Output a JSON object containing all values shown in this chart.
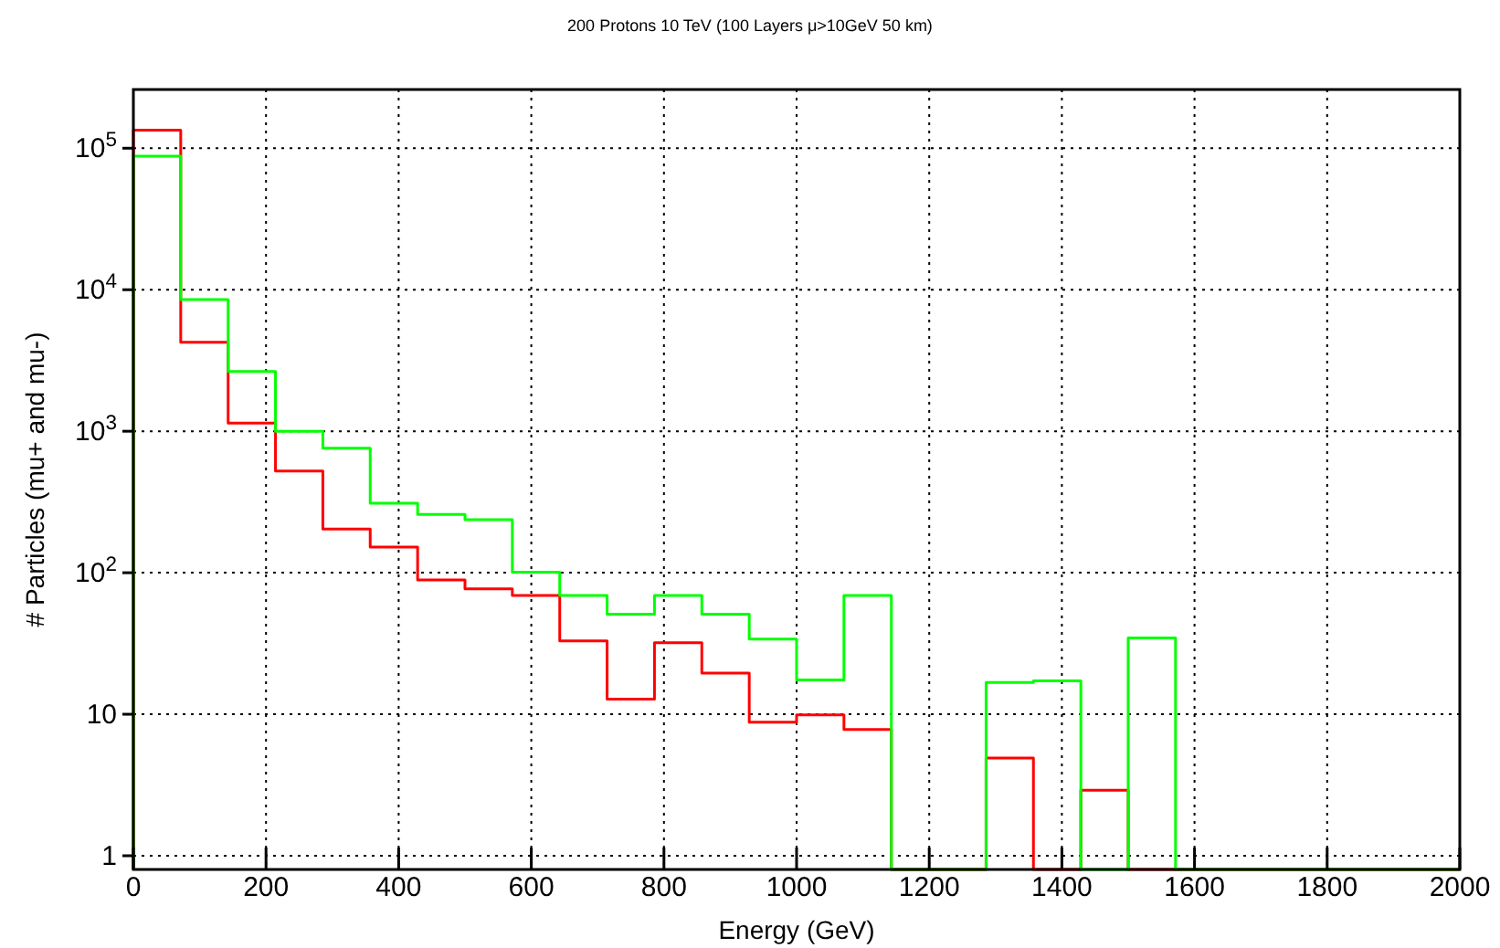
{
  "chart_data": {
    "type": "histogram",
    "title": "200 Protons 10 TeV (100 Layers μ>10GeV 50 km)",
    "xlabel": "Energy (GeV)",
    "ylabel": "# Particles (mu+ and mu-)",
    "bins": [
      0,
      71.4,
      142.9,
      214.3,
      285.7,
      357.1,
      428.6,
      500,
      571.4,
      642.9,
      714.3,
      785.7,
      857.1,
      928.6,
      1000,
      1071.4,
      1142.9,
      1214.3,
      1285.7,
      1357.1,
      1428.6,
      1500,
      1571.4,
      1642.9,
      1714.3,
      1785.7,
      1857.1,
      1928.6,
      2000
    ],
    "series": [
      {
        "color": "#ff0000",
        "values": [
          134000,
          4260,
          1140,
          523,
          204,
          152,
          89,
          77,
          69,
          33,
          12.8,
          32,
          19.5,
          8.8,
          9.9,
          7.8,
          null,
          null,
          4.9,
          null,
          2.9,
          null,
          null,
          null,
          null,
          null,
          null,
          null
        ]
      },
      {
        "color": "#00ff00",
        "values": [
          88000,
          8530,
          2640,
          1000,
          760,
          310,
          258,
          237,
          101,
          69,
          51,
          69,
          51,
          34,
          17.5,
          69,
          null,
          null,
          16.8,
          17.2,
          null,
          34.6,
          null,
          null,
          null,
          null,
          null,
          null
        ]
      }
    ],
    "log": true,
    "xlim": [
      0,
      2000
    ],
    "ylim": [
      0.8,
      260000
    ],
    "xticks": [
      0,
      200,
      400,
      600,
      800,
      1000,
      1200,
      1400,
      1600,
      1800,
      2000
    ],
    "yticks": [
      1,
      10,
      {
        "value": 100,
        "label": "10$^{2}$"
      },
      {
        "value": 1000,
        "label": "10$^{3}$"
      },
      {
        "value": 10000,
        "label": "10$^{4}$"
      },
      {
        "value": 100000,
        "label": "10$^{5}$"
      }
    ],
    "grid": true
  }
}
